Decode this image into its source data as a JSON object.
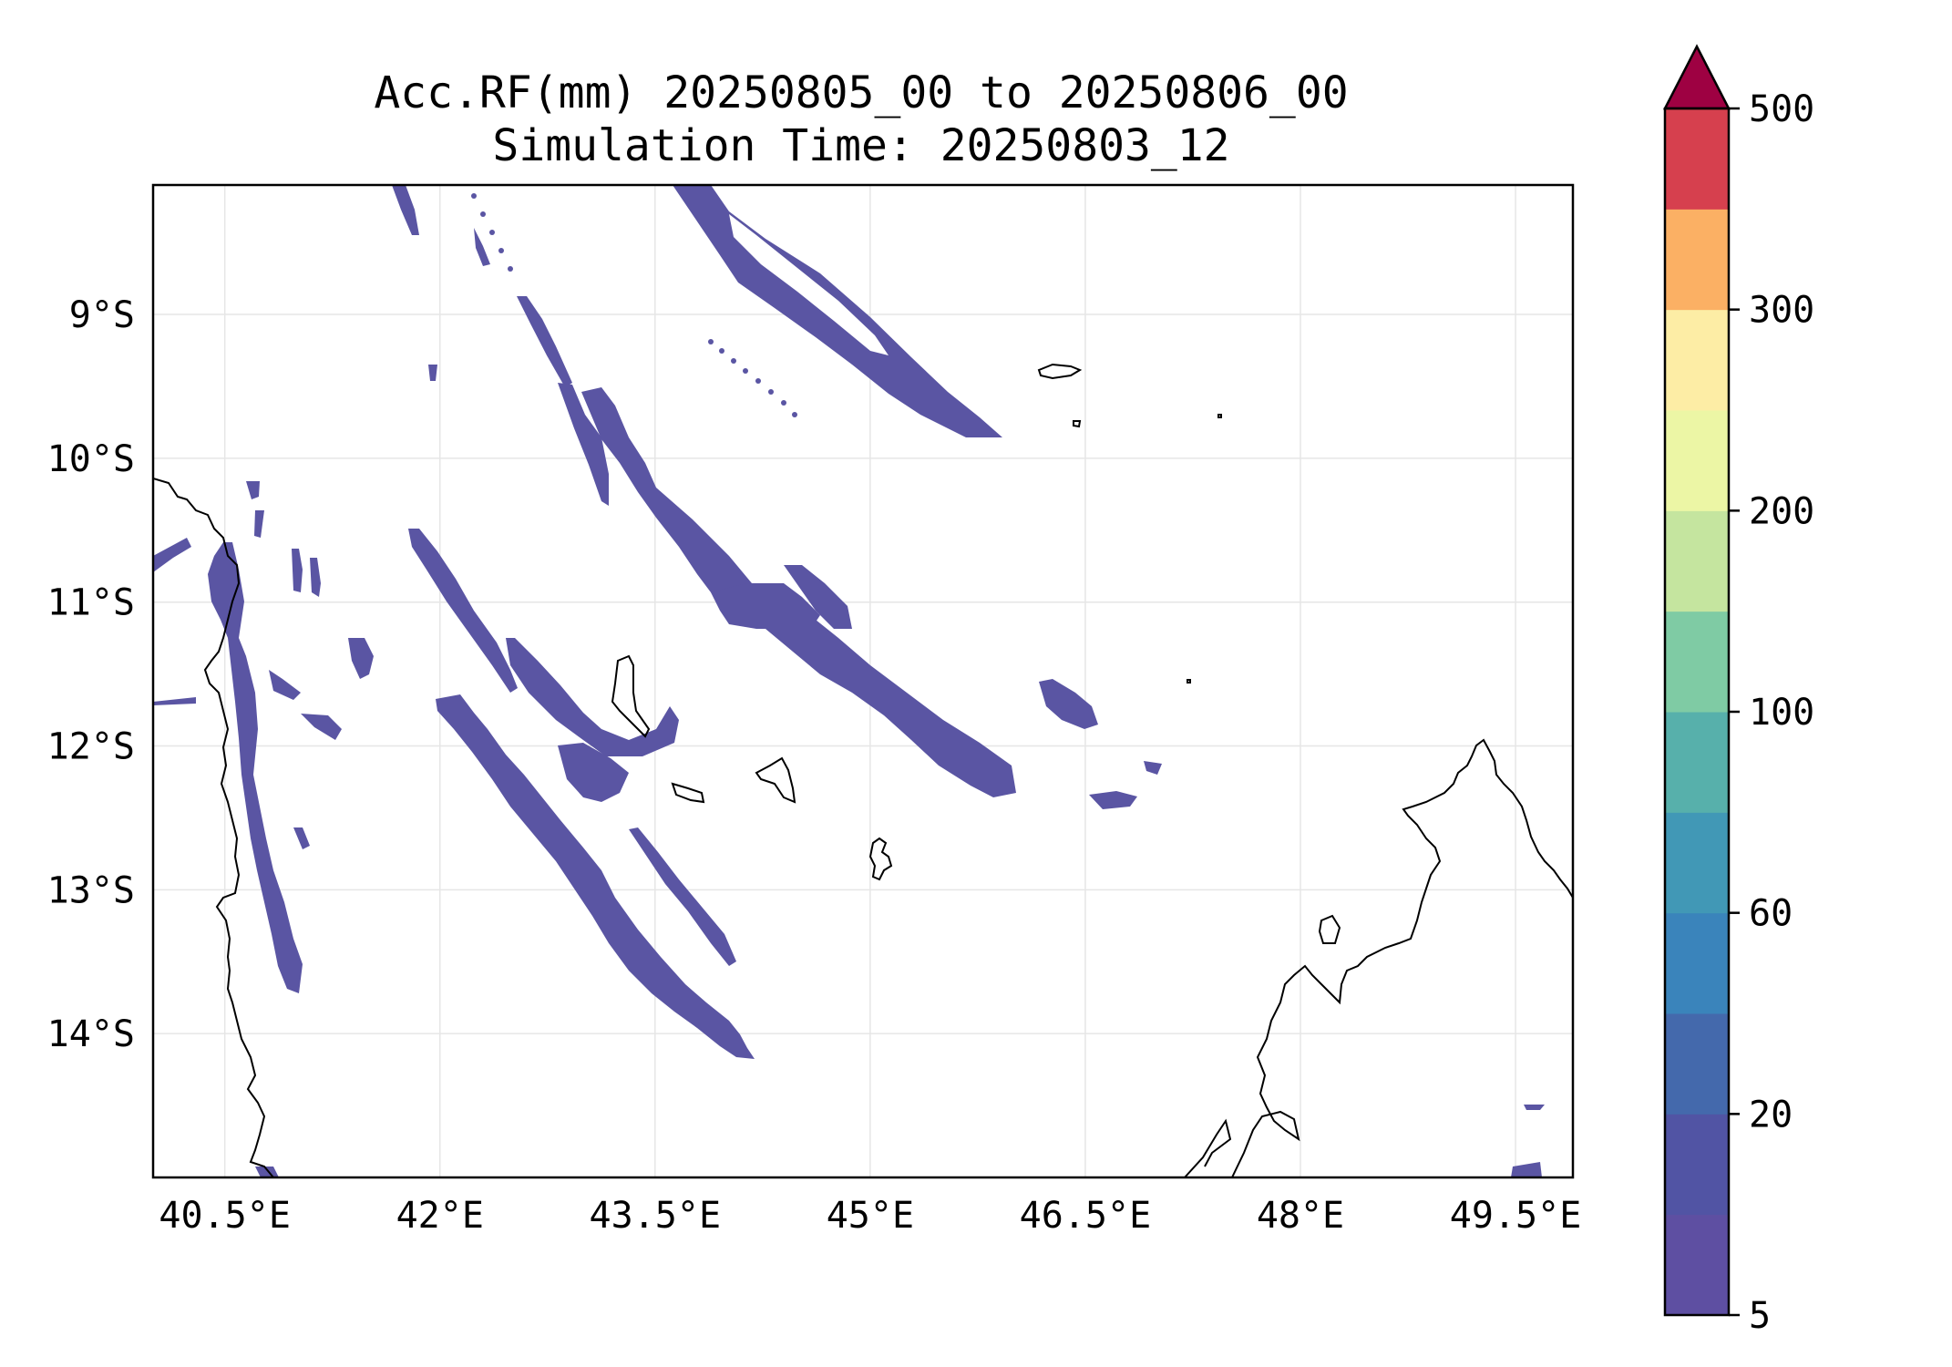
{
  "title": {
    "line1": "Acc.RF(mm) 20250805_00 to 20250806_00",
    "line2": "Simulation Time: 20250803_12"
  },
  "map": {
    "lon_range": [
      40.0,
      49.9
    ],
    "lat_range": [
      -15.0,
      -8.1
    ],
    "x_ticks": [
      {
        "value": 40.5,
        "label": "40.5°E"
      },
      {
        "value": 42.0,
        "label": "42°E"
      },
      {
        "value": 43.5,
        "label": "43.5°E"
      },
      {
        "value": 45.0,
        "label": "45°E"
      },
      {
        "value": 46.5,
        "label": "46.5°E"
      },
      {
        "value": 48.0,
        "label": "48°E"
      },
      {
        "value": 49.5,
        "label": "49.5°E"
      }
    ],
    "y_ticks": [
      {
        "value": -9,
        "label": "9°S"
      },
      {
        "value": -10,
        "label": "10°S"
      },
      {
        "value": -11,
        "label": "11°S"
      },
      {
        "value": -12,
        "label": "12°S"
      },
      {
        "value": -13,
        "label": "13°S"
      },
      {
        "value": -14,
        "label": "14°S"
      }
    ],
    "grid": true,
    "rain_color": "#5a55a3",
    "rain_color_dense": "#4a5fa8",
    "coastline_color": "#000000"
  },
  "colorbar": {
    "extend": "max",
    "ticks": [
      {
        "index": 0,
        "label": "5"
      },
      {
        "index": 2,
        "label": "20"
      },
      {
        "index": 4,
        "label": "60"
      },
      {
        "index": 6,
        "label": "100"
      },
      {
        "index": 8,
        "label": "200"
      },
      {
        "index": 10,
        "label": "300"
      },
      {
        "index": 12,
        "label": "500"
      }
    ],
    "colors": [
      "#5e4fa2",
      "#5154a4",
      "#4469ac",
      "#3a84bb",
      "#4198b6",
      "#57b0ab",
      "#7fcba4",
      "#c5e59f",
      "#ecf6a5",
      "#fdeda5",
      "#fbb064",
      "#d6404e"
    ],
    "extend_color": "#9e0142"
  }
}
